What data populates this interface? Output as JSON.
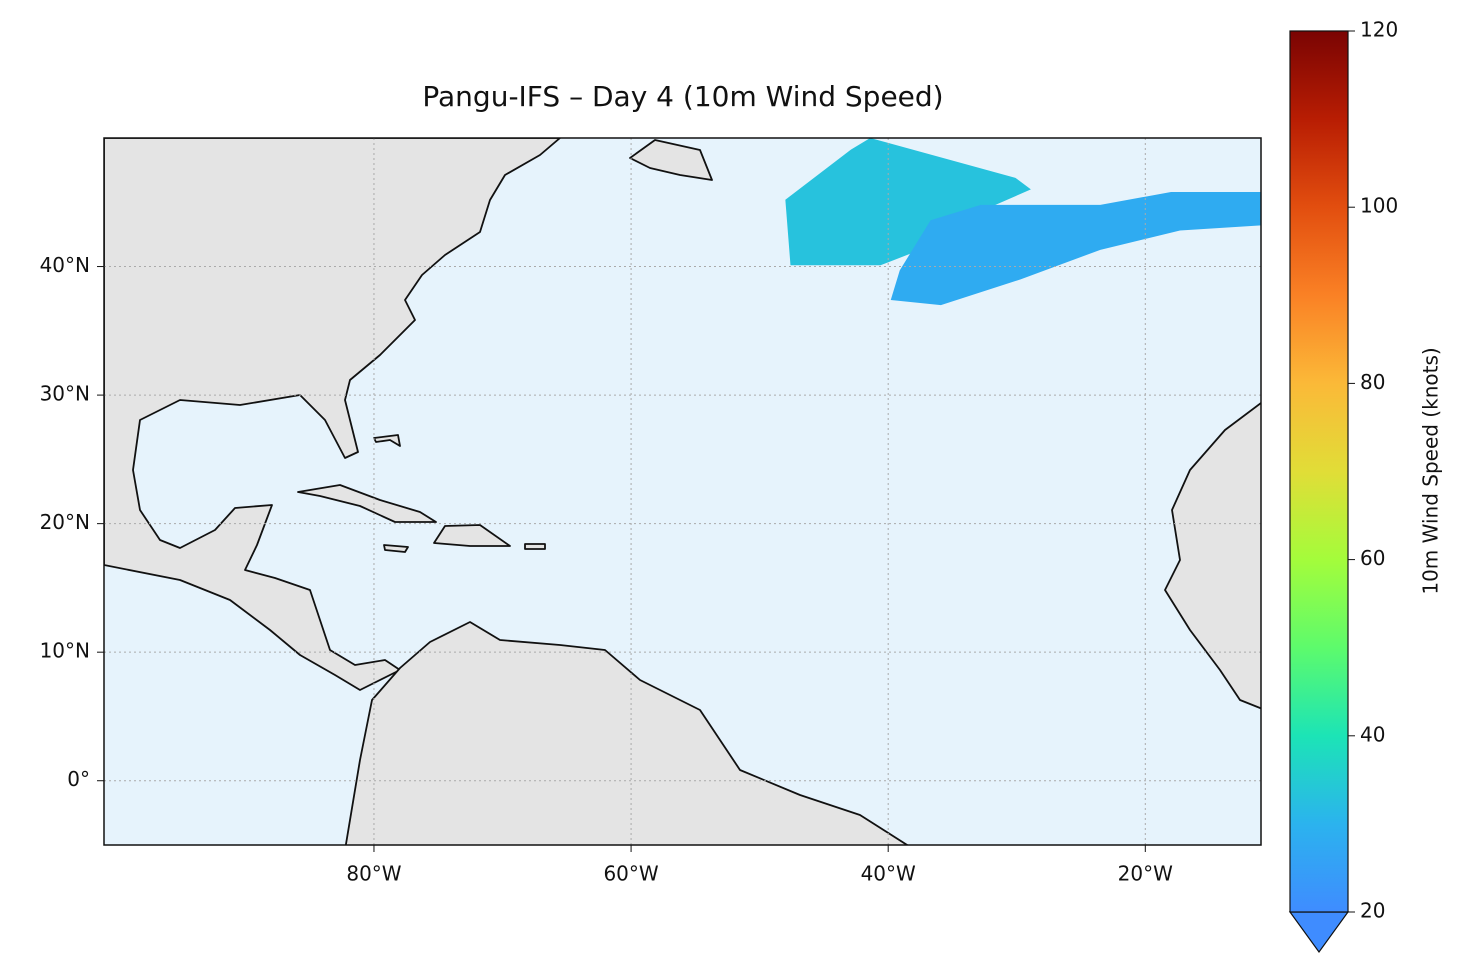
{
  "chart_data": {
    "type": "map",
    "title": "Pangu-IFS – Day 4 (10m Wind Speed)",
    "xlim": [
      -101,
      -11
    ],
    "ylim": [
      -5,
      50
    ],
    "xticks": [
      {
        "value": -80,
        "label": "80°W"
      },
      {
        "value": -60,
        "label": "60°W"
      },
      {
        "value": -40,
        "label": "40°W"
      },
      {
        "value": -20,
        "label": "20°W"
      }
    ],
    "yticks": [
      {
        "value": 0,
        "label": "0°"
      },
      {
        "value": 10,
        "label": "10°N"
      },
      {
        "value": 20,
        "label": "20°N"
      },
      {
        "value": 30,
        "label": "30°N"
      },
      {
        "value": 40,
        "label": "40°N"
      }
    ],
    "grid": true,
    "regions": [
      {
        "lon": [
          -48.0,
          -42.9,
          -41.4,
          -30.1,
          -28.9,
          -34.4,
          -37.5,
          -40.6,
          -47.6
        ],
        "lat": [
          45.2,
          49.1,
          50,
          46.9,
          46.0,
          43.6,
          41.3,
          40.1,
          40.1
        ],
        "speed": 33
      },
      {
        "lon": [
          -36.7,
          -32.8,
          -23.5,
          -18.0,
          -11,
          -11,
          -17.3,
          -23.5,
          -29.7,
          -35.9,
          -39.8,
          -39.1
        ],
        "lat": [
          43.6,
          44.8,
          44.8,
          45.8,
          45.8,
          43.2,
          42.8,
          41.3,
          39.0,
          37.0,
          37.4,
          39.7
        ],
        "speed": 28
      }
    ],
    "colorbar": {
      "label": "10m Wind Speed (knots)",
      "lim": [
        20,
        120
      ],
      "ticks": [
        20,
        40,
        60,
        80,
        100,
        120
      ],
      "colors": [
        "#3f8cff",
        "#2bb3ee",
        "#1ce4b6",
        "#5dfb6c",
        "#a4fc3b",
        "#e1dd37",
        "#fbb938",
        "#fa8125",
        "#e24e0f",
        "#b81d03",
        "#7a0403"
      ]
    }
  }
}
